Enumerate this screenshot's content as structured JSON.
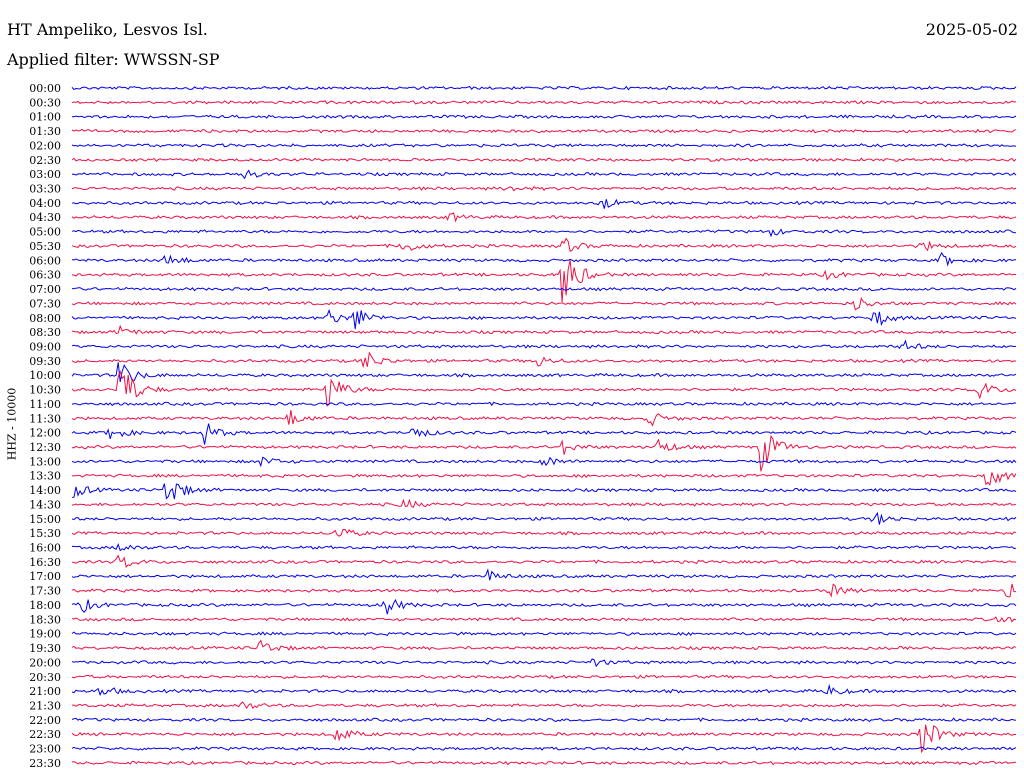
{
  "header": {
    "station": "HT Ampeliko, Lesvos Isl.",
    "date": "2025-05-02",
    "filter": "Applied filter: WWSSN-SP"
  },
  "chart_data": {
    "type": "helicorder",
    "ylabel": "HHZ - 10000",
    "rows": [
      "00:00",
      "00:30",
      "01:00",
      "01:30",
      "02:00",
      "02:30",
      "03:00",
      "03:30",
      "04:00",
      "04:30",
      "05:00",
      "05:30",
      "06:00",
      "06:30",
      "07:00",
      "07:30",
      "08:00",
      "08:30",
      "09:00",
      "09:30",
      "10:00",
      "10:30",
      "11:00",
      "11:30",
      "12:00",
      "12:30",
      "13:00",
      "13:30",
      "14:00",
      "14:30",
      "15:00",
      "15:30",
      "16:00",
      "16:30",
      "17:00",
      "17:30",
      "18:00",
      "18:30",
      "19:00",
      "19:30",
      "20:00",
      "20:30",
      "21:00",
      "21:30",
      "22:00",
      "22:30",
      "23:00",
      "23:30"
    ],
    "row_minutes": 30,
    "colors": [
      "#0000ee",
      "#ee1144"
    ],
    "events": [
      {
        "row": 6,
        "t": 0.18,
        "amp": 0.35
      },
      {
        "row": 7,
        "t": 0.46,
        "amp": 0.2
      },
      {
        "row": 8,
        "t": 0.56,
        "amp": 0.5
      },
      {
        "row": 9,
        "t": 0.4,
        "amp": 0.3
      },
      {
        "row": 10,
        "t": 0.74,
        "amp": 0.25
      },
      {
        "row": 11,
        "t": 0.35,
        "amp": 0.6
      },
      {
        "row": 11,
        "t": 0.52,
        "amp": 0.6
      },
      {
        "row": 11,
        "t": 0.9,
        "amp": 0.4
      },
      {
        "row": 12,
        "t": 0.1,
        "amp": 0.5
      },
      {
        "row": 12,
        "t": 0.92,
        "amp": 0.5
      },
      {
        "row": 13,
        "t": 0.52,
        "amp": 2.5
      },
      {
        "row": 13,
        "t": 0.8,
        "amp": 0.3
      },
      {
        "row": 15,
        "t": 0.83,
        "amp": 0.5
      },
      {
        "row": 16,
        "t": 0.27,
        "amp": 0.6
      },
      {
        "row": 16,
        "t": 0.3,
        "amp": 0.8
      },
      {
        "row": 16,
        "t": 0.85,
        "amp": 0.7
      },
      {
        "row": 17,
        "t": 0.05,
        "amp": 0.4
      },
      {
        "row": 18,
        "t": 0.88,
        "amp": 0.4
      },
      {
        "row": 19,
        "t": 0.31,
        "amp": 0.8
      },
      {
        "row": 19,
        "t": 0.49,
        "amp": 0.5
      },
      {
        "row": 20,
        "t": 0.05,
        "amp": 1.2
      },
      {
        "row": 21,
        "t": 0.05,
        "amp": 2.5
      },
      {
        "row": 21,
        "t": 0.27,
        "amp": 1.5
      },
      {
        "row": 21,
        "t": 0.96,
        "amp": 0.7
      },
      {
        "row": 23,
        "t": 0.23,
        "amp": 0.6
      },
      {
        "row": 23,
        "t": 0.61,
        "amp": 0.6
      },
      {
        "row": 24,
        "t": 0.04,
        "amp": 0.6
      },
      {
        "row": 24,
        "t": 0.14,
        "amp": 0.8
      },
      {
        "row": 24,
        "t": 0.36,
        "amp": 0.5
      },
      {
        "row": 25,
        "t": 0.52,
        "amp": 0.5
      },
      {
        "row": 25,
        "t": 0.62,
        "amp": 0.6
      },
      {
        "row": 25,
        "t": 0.73,
        "amp": 1.8
      },
      {
        "row": 26,
        "t": 0.2,
        "amp": 0.4
      },
      {
        "row": 26,
        "t": 0.5,
        "amp": 0.4
      },
      {
        "row": 27,
        "t": 0.97,
        "amp": 1.0
      },
      {
        "row": 28,
        "t": 0.0,
        "amp": 0.6
      },
      {
        "row": 28,
        "t": 0.1,
        "amp": 1.4
      },
      {
        "row": 29,
        "t": 0.35,
        "amp": 0.4
      },
      {
        "row": 30,
        "t": 0.85,
        "amp": 0.5
      },
      {
        "row": 31,
        "t": 0.28,
        "amp": 0.5
      },
      {
        "row": 32,
        "t": 0.05,
        "amp": 0.3
      },
      {
        "row": 33,
        "t": 0.05,
        "amp": 0.6
      },
      {
        "row": 34,
        "t": 0.44,
        "amp": 0.4
      },
      {
        "row": 35,
        "t": 0.8,
        "amp": 0.6
      },
      {
        "row": 35,
        "t": 0.99,
        "amp": 0.7
      },
      {
        "row": 36,
        "t": 0.01,
        "amp": 0.5
      },
      {
        "row": 36,
        "t": 0.33,
        "amp": 0.8
      },
      {
        "row": 37,
        "t": 0.98,
        "amp": 0.3
      },
      {
        "row": 39,
        "t": 0.2,
        "amp": 0.6
      },
      {
        "row": 40,
        "t": 0.55,
        "amp": 0.3
      },
      {
        "row": 42,
        "t": 0.03,
        "amp": 0.4
      },
      {
        "row": 42,
        "t": 0.8,
        "amp": 0.4
      },
      {
        "row": 43,
        "t": 0.18,
        "amp": 0.3
      },
      {
        "row": 45,
        "t": 0.28,
        "amp": 0.6
      },
      {
        "row": 45,
        "t": 0.9,
        "amp": 1.6
      }
    ]
  }
}
